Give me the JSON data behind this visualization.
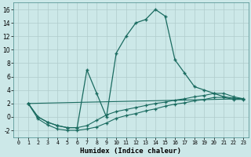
{
  "xlabel": "Humidex (Indice chaleur)",
  "bg_color": "#cce8e8",
  "line_color": "#1a6b60",
  "grid_color": "#b0cccc",
  "xlim": [
    -0.5,
    23.5
  ],
  "ylim": [
    -3,
    17
  ],
  "xticks": [
    0,
    1,
    2,
    3,
    4,
    5,
    6,
    7,
    8,
    9,
    10,
    11,
    12,
    13,
    14,
    15,
    16,
    17,
    18,
    19,
    20,
    21,
    22,
    23
  ],
  "yticks": [
    -2,
    0,
    2,
    4,
    6,
    8,
    10,
    12,
    14,
    16
  ],
  "line_main_x": [
    1,
    2,
    3,
    4,
    5,
    6,
    7,
    8,
    9,
    10,
    11,
    12,
    13,
    14,
    15,
    16,
    17,
    18,
    19,
    20,
    21,
    22,
    23
  ],
  "line_main_y": [
    2.0,
    0.0,
    -0.8,
    -1.3,
    -1.6,
    -1.6,
    7.0,
    3.5,
    0.0,
    9.5,
    12.0,
    14.0,
    14.5,
    16.0,
    15.0,
    8.5,
    6.5,
    4.5,
    4.0,
    3.5,
    3.0,
    2.8,
    2.7
  ],
  "line2_x": [
    1,
    2,
    3,
    4,
    5,
    6,
    7,
    8,
    9,
    10,
    11,
    12,
    13,
    14,
    15,
    16,
    17,
    18,
    19,
    20,
    21,
    22,
    23
  ],
  "line2_y": [
    2.0,
    0.0,
    -0.8,
    -1.3,
    -1.6,
    -1.6,
    -1.3,
    -0.5,
    0.3,
    0.8,
    1.1,
    1.4,
    1.7,
    2.0,
    2.2,
    2.5,
    2.7,
    3.0,
    3.2,
    3.5,
    3.5,
    3.0,
    2.7
  ],
  "line3_x": [
    1,
    2,
    3,
    4,
    5,
    6,
    7,
    8,
    9,
    10,
    11,
    12,
    13,
    14,
    15,
    16,
    17,
    18,
    19,
    20,
    21,
    22,
    23
  ],
  "line3_y": [
    2.0,
    -0.3,
    -1.2,
    -1.8,
    -2.0,
    -2.0,
    -1.8,
    -1.5,
    -0.9,
    -0.2,
    0.2,
    0.5,
    0.9,
    1.2,
    1.6,
    1.9,
    2.1,
    2.4,
    2.6,
    2.9,
    2.9,
    2.6,
    2.6
  ],
  "line4_x": [
    1,
    23
  ],
  "line4_y": [
    2.0,
    2.7
  ]
}
